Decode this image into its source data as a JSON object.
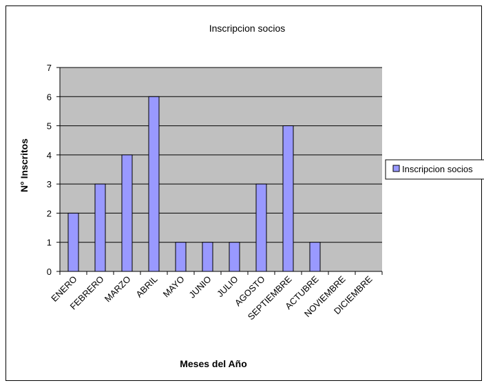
{
  "chart_data": {
    "type": "bar",
    "title": "Inscripcion socios",
    "xlabel": "Meses del Año",
    "ylabel": "N° Inscritos",
    "categories": [
      "ENERO",
      "FEBRERO",
      "MARZO",
      "ABRIL",
      "MAYO",
      "JUNIO",
      "JULIO",
      "AGOSTO",
      "SEPTIEMBRE",
      "ACTUBRE",
      "NOVIEMBRE",
      "DICIEMBRE"
    ],
    "series": [
      {
        "name": "Inscripcion socios",
        "values": [
          2,
          3,
          4,
          6,
          1,
          1,
          1,
          3,
          5,
          1,
          0,
          0
        ]
      }
    ],
    "ylim": [
      0,
      7
    ],
    "yticks": [
      "0",
      "1",
      "2",
      "3",
      "4",
      "5",
      "6",
      "7"
    ],
    "grid": true,
    "legend_position": "right",
    "colors": {
      "bar_fill": "#9999ff",
      "bar_stroke": "#000000",
      "plot_bg": "#c0c0c0"
    }
  }
}
